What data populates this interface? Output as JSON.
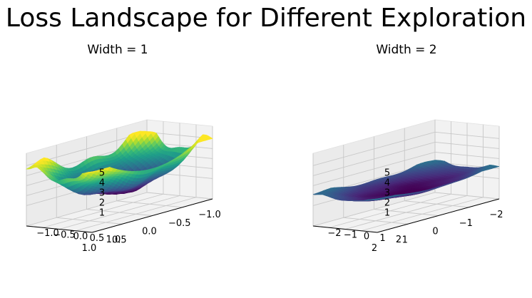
{
  "title": "Loss Landscape for Different Exploration",
  "chart_data": [
    {
      "type": "surface",
      "title": "Width = 1",
      "colormap": "viridis",
      "xlim": [
        -1.0,
        1.0
      ],
      "ylim": [
        -1.0,
        1.0
      ],
      "zlim": [
        1,
        5
      ],
      "x_ticks": [
        "−1.0",
        "−0.5",
        "0.0",
        "0.5",
        "1.0"
      ],
      "y_ticks": [
        "−1.0",
        "−0.5",
        "0.0",
        "0.5",
        "1.0"
      ],
      "z_ticks": [
        "1",
        "2",
        "3",
        "4",
        "5"
      ],
      "surface": {
        "min": 1.0,
        "max": 5.0,
        "shape": "bowl",
        "noise": "high"
      },
      "grid": true
    },
    {
      "type": "surface",
      "title": "Width = 2",
      "colormap": "viridis",
      "xlim": [
        -2,
        2
      ],
      "ylim": [
        -2,
        2
      ],
      "zlim": [
        1,
        5
      ],
      "x_ticks": [
        "−2",
        "−1",
        "0",
        "1",
        "2"
      ],
      "y_ticks": [
        "−2",
        "−1",
        "0",
        "1",
        "2"
      ],
      "z_ticks": [
        "1",
        "2",
        "3",
        "4",
        "5"
      ],
      "surface": {
        "min": 1.0,
        "max": 2.2,
        "shape": "bowl",
        "noise": "low"
      },
      "grid": true
    }
  ]
}
